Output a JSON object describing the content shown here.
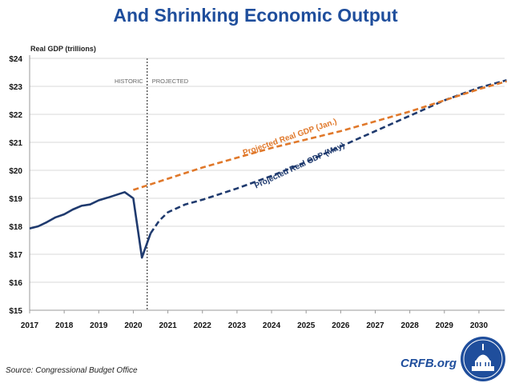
{
  "title": "And Shrinking Economic Output",
  "source": "Source: Congressional Budget Office",
  "brand": "CRFB.org",
  "colors": {
    "title": "#1f4e9c",
    "historic": "#1f3a6e",
    "projected_may": "#1f3a6e",
    "projected_jan": "#e0782a",
    "divider": "#555555",
    "grid": "#d9d9d9"
  },
  "chart_data": {
    "type": "line",
    "title": "And Shrinking Economic Output",
    "ylabel": "Real GDP (trillions)",
    "xlabel": "",
    "xlim": [
      2017,
      2030.8
    ],
    "ylim": [
      15,
      24
    ],
    "x_ticks": [
      2017,
      2018,
      2019,
      2020,
      2021,
      2022,
      2023,
      2024,
      2025,
      2026,
      2027,
      2028,
      2029,
      2030
    ],
    "x_tick_labels": [
      "2017",
      "2018",
      "2019",
      "2020",
      "2021",
      "2022",
      "2023",
      "2024",
      "2025",
      "2026",
      "2027",
      "2028",
      "2029",
      "2030"
    ],
    "y_ticks": [
      15,
      16,
      17,
      18,
      19,
      20,
      21,
      22,
      23,
      24
    ],
    "y_tick_labels": [
      "$15",
      "$16",
      "$17",
      "$18",
      "$19",
      "$20",
      "$21",
      "$22",
      "$23",
      "$24"
    ],
    "grid": "horizontal",
    "divider": {
      "x": 2020.4,
      "left_label": "HISTORIC",
      "right_label": "PROJECTED"
    },
    "series": [
      {
        "key": "historic",
        "style": "solid",
        "points": [
          [
            2017.0,
            17.92
          ],
          [
            2017.25,
            18.0
          ],
          [
            2017.5,
            18.15
          ],
          [
            2017.75,
            18.32
          ],
          [
            2018.0,
            18.43
          ],
          [
            2018.25,
            18.6
          ],
          [
            2018.5,
            18.73
          ],
          [
            2018.75,
            18.78
          ],
          [
            2019.0,
            18.93
          ],
          [
            2019.25,
            19.02
          ],
          [
            2019.5,
            19.12
          ],
          [
            2019.75,
            19.22
          ],
          [
            2020.0,
            19.0
          ],
          [
            2020.25,
            16.88
          ],
          [
            2020.5,
            17.75
          ]
        ]
      },
      {
        "key": "projected_may",
        "name": "Projected Real GDP (May)",
        "style": "dashed",
        "points": [
          [
            2020.5,
            17.75
          ],
          [
            2020.75,
            18.2
          ],
          [
            2021.0,
            18.5
          ],
          [
            2021.5,
            18.78
          ],
          [
            2022.0,
            18.95
          ],
          [
            2023.0,
            19.35
          ],
          [
            2024.0,
            19.8
          ],
          [
            2025.0,
            20.3
          ],
          [
            2026.0,
            20.85
          ],
          [
            2027.0,
            21.4
          ],
          [
            2028.0,
            21.95
          ],
          [
            2029.0,
            22.5
          ],
          [
            2030.0,
            22.95
          ],
          [
            2030.8,
            23.22
          ]
        ]
      },
      {
        "key": "projected_jan",
        "name": "Projected Real GDP (Jan.)",
        "style": "dashed",
        "points": [
          [
            2020.0,
            19.3
          ],
          [
            2021.0,
            19.7
          ],
          [
            2022.0,
            20.1
          ],
          [
            2023.0,
            20.45
          ],
          [
            2024.0,
            20.8
          ],
          [
            2025.0,
            21.1
          ],
          [
            2026.0,
            21.4
          ],
          [
            2027.0,
            21.75
          ],
          [
            2028.0,
            22.1
          ],
          [
            2029.0,
            22.5
          ],
          [
            2030.0,
            22.9
          ],
          [
            2030.8,
            23.18
          ]
        ]
      }
    ]
  }
}
